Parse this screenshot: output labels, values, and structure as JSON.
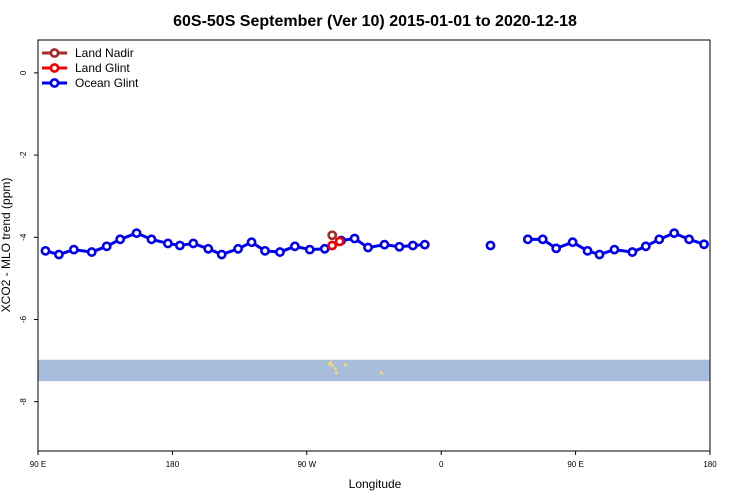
{
  "chart_data": {
    "type": "line",
    "title": "60S-50S September (Ver 10)   2015-01-01 to 2020-12-18",
    "xlabel": "Longitude",
    "ylabel": "XCO2 - MLO trend (ppm)",
    "xlim": [
      90,
      540
    ],
    "ylim": [
      -9.2,
      0.8
    ],
    "x_ticks": [
      {
        "value": 90,
        "label": "90 E"
      },
      {
        "value": 180,
        "label": "180"
      },
      {
        "value": 270,
        "label": "90 W"
      },
      {
        "value": 360,
        "label": "0"
      },
      {
        "value": 450,
        "label": "90 E"
      },
      {
        "value": 540,
        "label": "180"
      }
    ],
    "y_ticks": [
      {
        "value": 0,
        "label": "0"
      },
      {
        "value": -2,
        "label": "-2"
      },
      {
        "value": -4,
        "label": "-4"
      },
      {
        "value": -6,
        "label": "-6"
      },
      {
        "value": -8,
        "label": "-8"
      }
    ],
    "grid": false,
    "legend_position": "top-left",
    "map_strip": {
      "y_top": -6.98,
      "y_bottom": -7.5,
      "color": "#a7bddb",
      "land_color": "#f2d77a"
    },
    "series": [
      {
        "name": "Land Nadir",
        "color": "#a52a2a",
        "segments": [
          [
            [
              287,
              -3.95
            ]
          ]
        ]
      },
      {
        "name": "Land Glint",
        "color": "#ee0000",
        "segments": [
          [
            [
              287,
              -4.2
            ],
            [
              292,
              -4.1
            ]
          ]
        ]
      },
      {
        "name": "Ocean Glint",
        "color": "#0000ee",
        "segments": [
          [
            [
              95,
              -4.33
            ],
            [
              104,
              -4.42
            ],
            [
              114,
              -4.3
            ],
            [
              126,
              -4.36
            ],
            [
              136,
              -4.22
            ],
            [
              145,
              -4.05
            ],
            [
              156,
              -3.9
            ],
            [
              166,
              -4.05
            ],
            [
              177,
              -4.15
            ],
            [
              185,
              -4.2
            ],
            [
              194,
              -4.15
            ],
            [
              204,
              -4.28
            ],
            [
              213,
              -4.42
            ],
            [
              224,
              -4.28
            ],
            [
              233,
              -4.12
            ],
            [
              242,
              -4.33
            ],
            [
              252,
              -4.36
            ],
            [
              262,
              -4.22
            ],
            [
              272,
              -4.3
            ],
            [
              282,
              -4.28
            ],
            [
              293,
              -4.08
            ],
            [
              302,
              -4.03
            ],
            [
              311,
              -4.25
            ],
            [
              322,
              -4.18
            ],
            [
              332,
              -4.23
            ],
            [
              341,
              -4.2
            ],
            [
              349,
              -4.18
            ]
          ],
          [
            [
              393,
              -4.2
            ]
          ],
          [
            [
              418,
              -4.05
            ],
            [
              428,
              -4.05
            ],
            [
              437,
              -4.27
            ],
            [
              448,
              -4.12
            ],
            [
              458,
              -4.33
            ],
            [
              466,
              -4.42
            ],
            [
              476,
              -4.3
            ],
            [
              488,
              -4.36
            ],
            [
              497,
              -4.22
            ],
            [
              506,
              -4.05
            ],
            [
              516,
              -3.9
            ],
            [
              526,
              -4.05
            ],
            [
              536,
              -4.17
            ]
          ]
        ]
      }
    ]
  }
}
